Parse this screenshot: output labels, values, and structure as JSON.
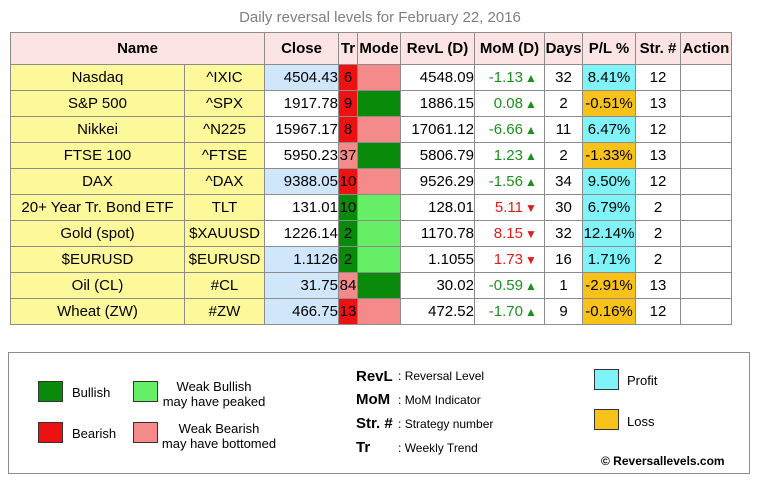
{
  "title": "Daily reversal levels for February 22, 2016",
  "colors": {
    "bullish": "#0a8a0a",
    "weak_bullish": "#66ee66",
    "bearish": "#ee1111",
    "weak_bearish": "#f48a8a",
    "profit": "#7ff3f8",
    "loss": "#f8c21a",
    "name_bg": "#fdf89a",
    "close_blue": "#cfe6fb",
    "header_bg": "#fde4e4"
  },
  "headers": {
    "name": "Name",
    "close": "Close",
    "tr": "Tr",
    "mode": "Mode",
    "revl": "RevL (D)",
    "mom": "MoM (D)",
    "days": "Days",
    "pl": "P/L %",
    "strn": "Str. #",
    "action": "Action"
  },
  "rows": [
    {
      "name": "Nasdaq",
      "symbol": "^IXIC",
      "close": "4504.43",
      "close_blue": true,
      "tr": "6",
      "tr_color": "bearish",
      "mode_color": "weak_bearish",
      "revl": "4548.09",
      "mom": "-1.13",
      "mom_dir": "up",
      "days": "32",
      "pl": "8.41%",
      "pl_type": "profit",
      "strategy": "12",
      "action": ""
    },
    {
      "name": "S&P 500",
      "symbol": "^SPX",
      "close": "1917.78",
      "close_blue": false,
      "tr": "9",
      "tr_color": "bearish",
      "mode_color": "bullish",
      "revl": "1886.15",
      "mom": "0.08",
      "mom_dir": "up",
      "days": "2",
      "pl": "-0.51%",
      "pl_type": "loss",
      "strategy": "13",
      "action": ""
    },
    {
      "name": "Nikkei",
      "symbol": "^N225",
      "close": "15967.17",
      "close_blue": false,
      "tr": "8",
      "tr_color": "bearish",
      "mode_color": "weak_bearish",
      "revl": "17061.12",
      "mom": "-6.66",
      "mom_dir": "up",
      "days": "11",
      "pl": "6.47%",
      "pl_type": "profit",
      "strategy": "12",
      "action": ""
    },
    {
      "name": "FTSE 100",
      "symbol": "^FTSE",
      "close": "5950.23",
      "close_blue": false,
      "tr": "37",
      "tr_color": "weak_bearish",
      "mode_color": "bullish",
      "revl": "5806.79",
      "mom": "1.23",
      "mom_dir": "up",
      "days": "2",
      "pl": "-1.33%",
      "pl_type": "loss",
      "strategy": "13",
      "action": ""
    },
    {
      "name": "DAX",
      "symbol": "^DAX",
      "close": "9388.05",
      "close_blue": true,
      "tr": "10",
      "tr_color": "bearish",
      "mode_color": "weak_bearish",
      "revl": "9526.29",
      "mom": "-1.56",
      "mom_dir": "up",
      "days": "34",
      "pl": "9.50%",
      "pl_type": "profit",
      "strategy": "12",
      "action": ""
    },
    {
      "name": "20+ Year Tr. Bond ETF",
      "symbol": "TLT",
      "close": "131.01",
      "close_blue": false,
      "tr": "10",
      "tr_color": "bullish",
      "mode_color": "weak_bullish",
      "revl": "128.01",
      "mom": "5.11",
      "mom_dir": "down",
      "days": "30",
      "pl": "6.79%",
      "pl_type": "profit",
      "strategy": "2",
      "action": ""
    },
    {
      "name": "Gold (spot)",
      "symbol": "$XAUUSD",
      "close": "1226.14",
      "close_blue": false,
      "tr": "2",
      "tr_color": "bullish",
      "mode_color": "weak_bullish",
      "revl": "1170.78",
      "mom": "8.15",
      "mom_dir": "down",
      "days": "32",
      "pl": "12.14%",
      "pl_type": "profit",
      "strategy": "2",
      "action": ""
    },
    {
      "name": "$EURUSD",
      "symbol": "$EURUSD",
      "close": "1.1126",
      "close_blue": true,
      "tr": "2",
      "tr_color": "bullish",
      "mode_color": "weak_bullish",
      "revl": "1.1055",
      "mom": "1.73",
      "mom_dir": "down",
      "days": "16",
      "pl": "1.71%",
      "pl_type": "profit",
      "strategy": "2",
      "action": ""
    },
    {
      "name": "Oil (CL)",
      "symbol": "#CL",
      "close": "31.75",
      "close_blue": true,
      "tr": "84",
      "tr_color": "weak_bearish",
      "mode_color": "bullish",
      "revl": "30.02",
      "mom": "-0.59",
      "mom_dir": "up",
      "days": "1",
      "pl": "-2.91%",
      "pl_type": "loss",
      "strategy": "13",
      "action": ""
    },
    {
      "name": "Wheat (ZW)",
      "symbol": "#ZW",
      "close": "466.75",
      "close_blue": true,
      "tr": "13",
      "tr_color": "bearish",
      "mode_color": "weak_bearish",
      "revl": "472.52",
      "mom": "-1.70",
      "mom_dir": "up",
      "days": "9",
      "pl": "-0.16%",
      "pl_type": "loss",
      "strategy": "12",
      "action": ""
    }
  ],
  "legend": {
    "bullish": "Bullish",
    "weak_bullish_line1": "Weak Bullish",
    "weak_bullish_line2": "may have peaked",
    "bearish": "Bearish",
    "weak_bearish_line1": "Weak Bearish",
    "weak_bearish_line2": "may have bottomed",
    "definitions": [
      {
        "abbr": "RevL",
        "desc": "Reversal Level"
      },
      {
        "abbr": "MoM",
        "desc": "MoM Indicator"
      },
      {
        "abbr": "Str. #",
        "desc": "Strategy number"
      },
      {
        "abbr": "Tr",
        "desc": "Weekly Trend"
      }
    ],
    "profit": "Profit",
    "loss": "Loss",
    "copyright": "© Reversallevels.com"
  },
  "icons": {
    "up_arrow": "▲",
    "down_arrow": "▼",
    "separator": ":"
  }
}
